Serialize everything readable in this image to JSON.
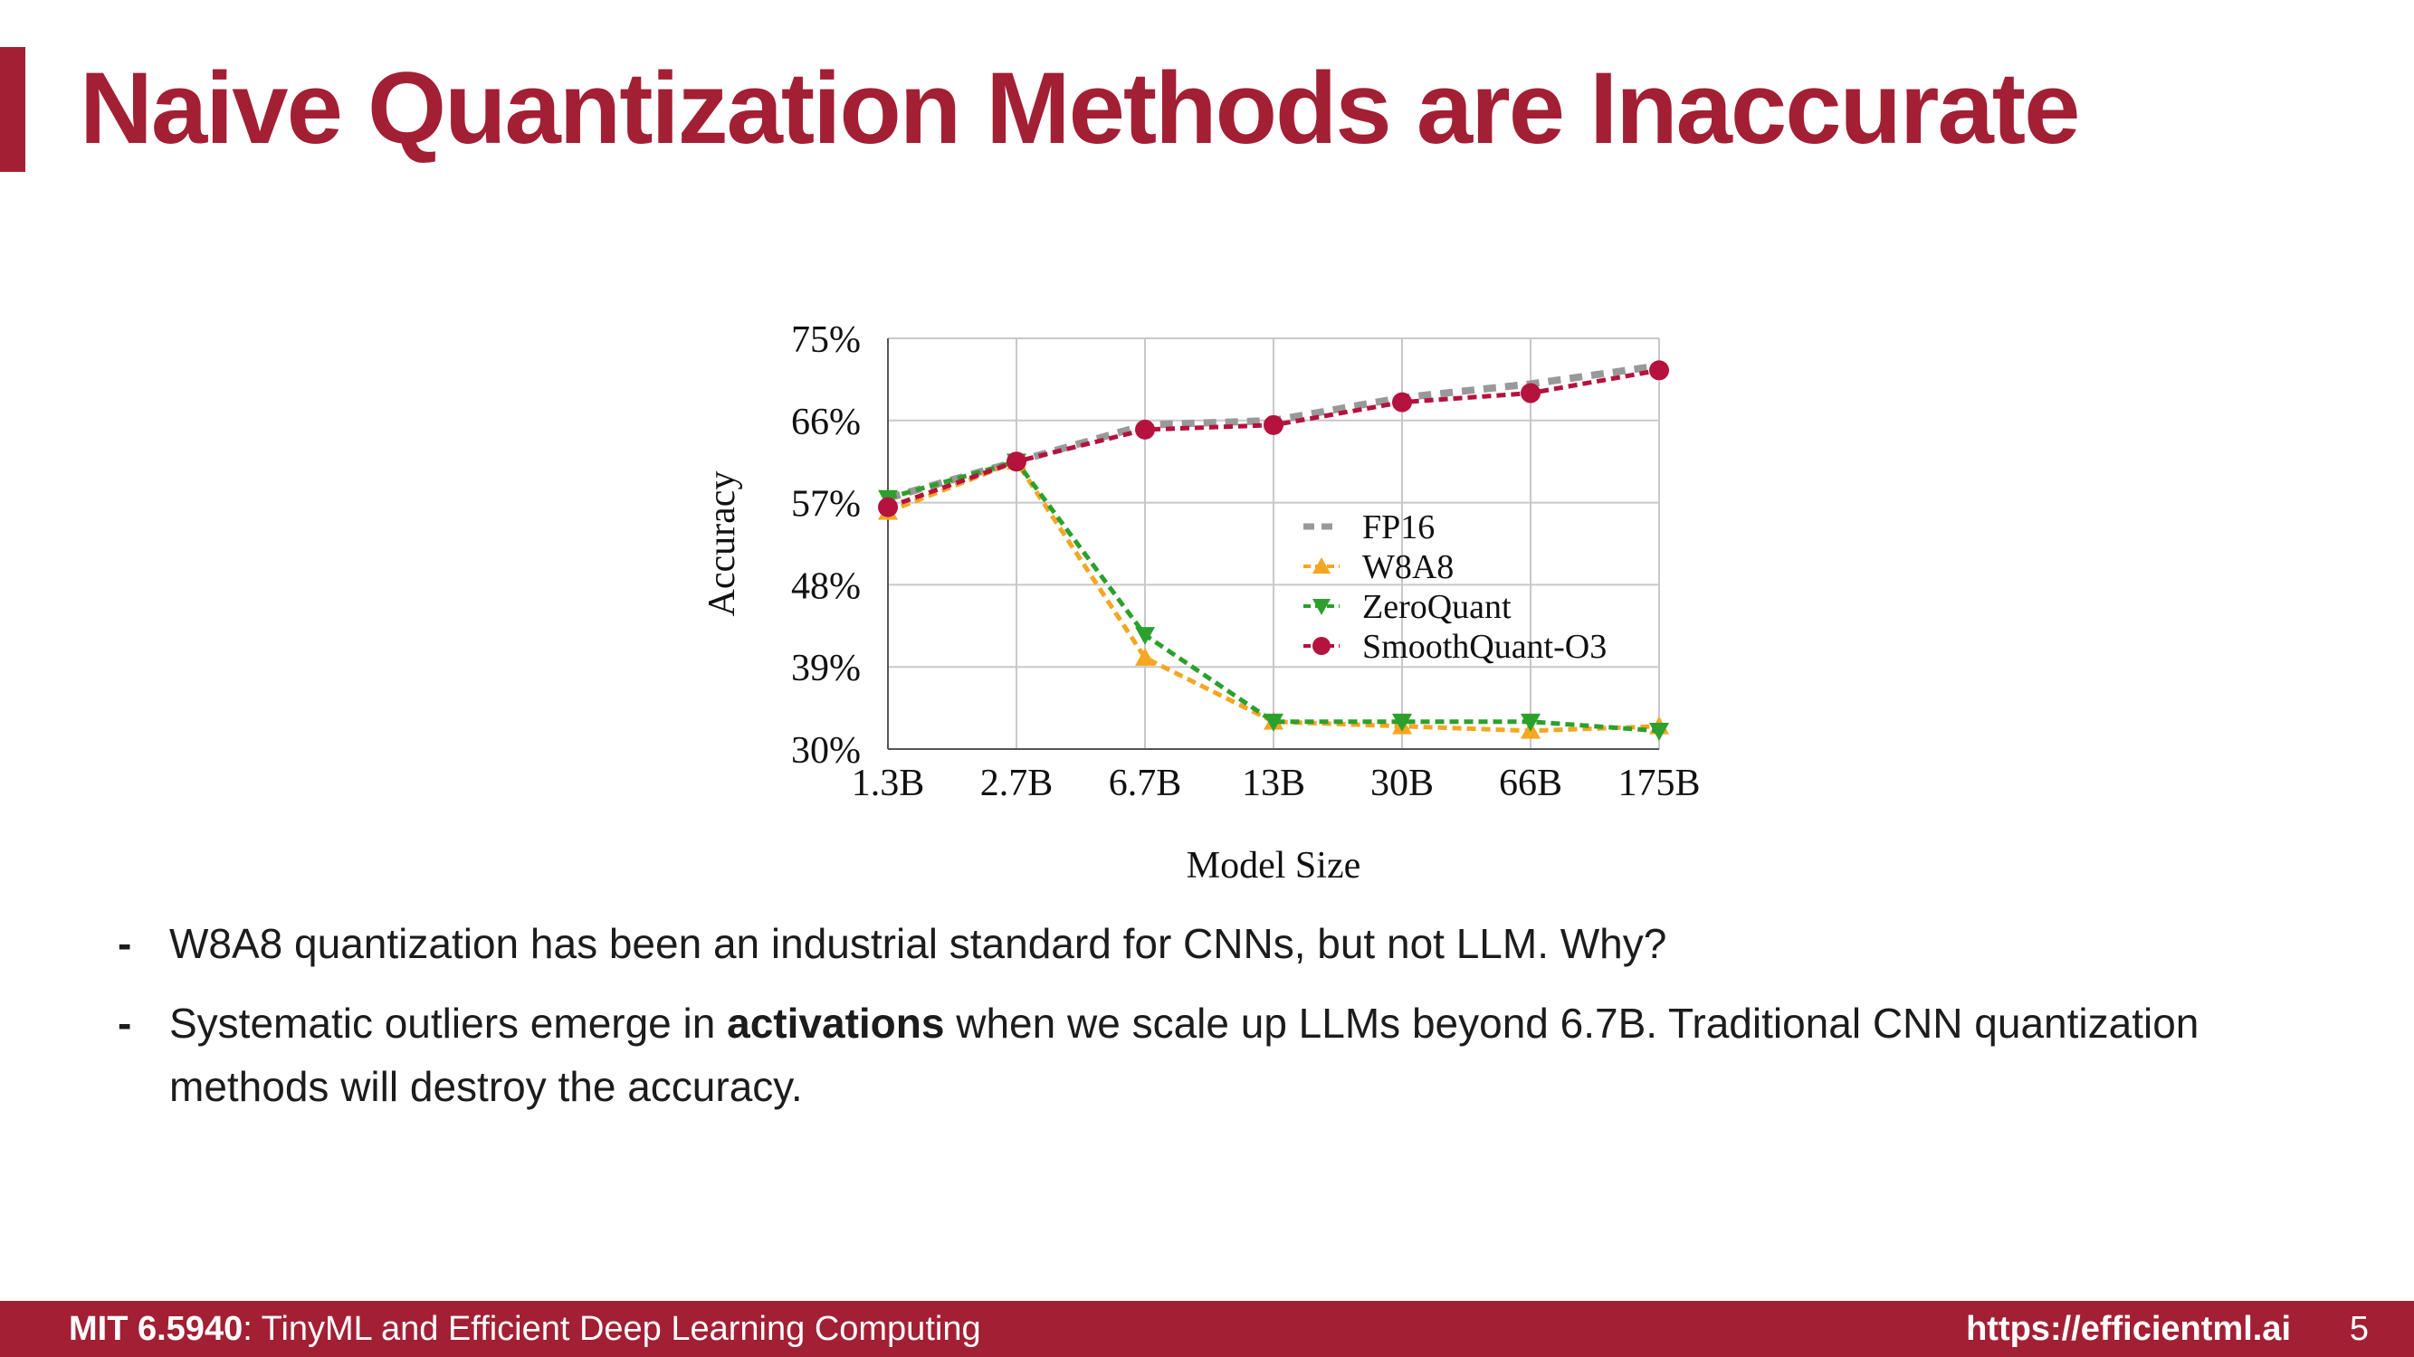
{
  "slide": {
    "title": "Naive Quantization Methods are Inaccurate"
  },
  "bullets": [
    {
      "parts": [
        {
          "text": "W8A8 quantization has been an industrial standard for CNNs, but not LLM. Why?",
          "bold": false
        }
      ]
    },
    {
      "parts": [
        {
          "text": "Systematic outliers emerge in ",
          "bold": false
        },
        {
          "text": "activations",
          "bold": true
        },
        {
          "text": " when we scale up LLMs beyond 6.7B. Traditional CNN quantization methods will destroy the accuracy.",
          "bold": false
        }
      ]
    }
  ],
  "footer": {
    "course_code": "MIT 6.5940",
    "course_name": ": TinyML and Efficient Deep Learning Computing",
    "url": "https://efficientml.ai",
    "page_number": "5"
  },
  "chart_data": {
    "type": "line",
    "xlabel": "Model Size",
    "ylabel": "Accuracy",
    "categories": [
      "1.3B",
      "2.7B",
      "6.7B",
      "13B",
      "30B",
      "66B",
      "175B"
    ],
    "yticks": [
      "30%",
      "39%",
      "48%",
      "57%",
      "66%",
      "75%"
    ],
    "ylim": [
      30,
      75
    ],
    "grid": true,
    "legend_position": "center-right",
    "series": [
      {
        "name": "FP16",
        "values": [
          57.5,
          61.5,
          65.5,
          66.0,
          68.5,
          70.0,
          72.0
        ],
        "color": "#999999",
        "marker": "none"
      },
      {
        "name": "W8A8",
        "values": [
          56.0,
          61.5,
          40.0,
          33.0,
          32.5,
          32.0,
          32.5
        ],
        "color": "#f5a623",
        "marker": "triangle-up"
      },
      {
        "name": "ZeroQuant",
        "values": [
          57.5,
          61.5,
          42.5,
          33.0,
          33.0,
          33.0,
          32.0
        ],
        "color": "#2ca02c",
        "marker": "triangle-down"
      },
      {
        "name": "SmoothQuant-O3",
        "values": [
          56.5,
          61.5,
          65.0,
          65.5,
          68.0,
          69.0,
          71.5
        ],
        "color": "#b5123e",
        "marker": "circle"
      }
    ]
  }
}
